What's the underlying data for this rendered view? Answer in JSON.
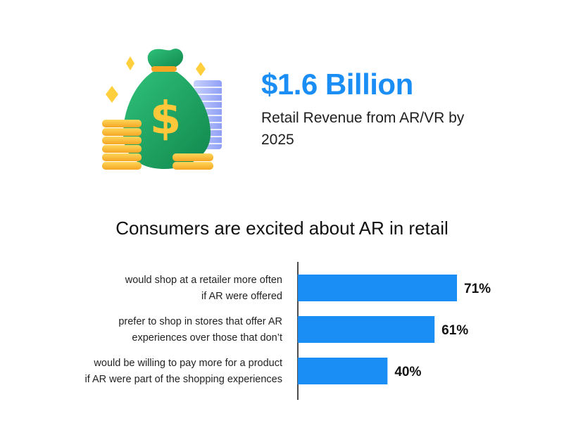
{
  "hero": {
    "stat_value": "$1.6 Billion",
    "stat_caption": "Retail Revenue from AR/VR by 2025",
    "illustration_icon": "money-bag-icon",
    "accent_color": "#1b8ef5"
  },
  "chart_data": {
    "type": "bar",
    "orientation": "horizontal",
    "title": "Consumers are excited about AR in retail",
    "categories": [
      [
        "would shop at a retailer more often",
        "if AR were offered"
      ],
      [
        "prefer to shop in stores that offer AR",
        "experiences over those that don’t"
      ],
      [
        "would be willing to pay more for a product",
        "if AR were part of the shopping experiences"
      ]
    ],
    "values": [
      71,
      61,
      40
    ],
    "value_labels": [
      "71%",
      "61%",
      "40%"
    ],
    "unit": "%",
    "xlim": [
      0,
      100
    ],
    "bar_color": "#1b8ef5",
    "grid": false,
    "legend": "none"
  }
}
